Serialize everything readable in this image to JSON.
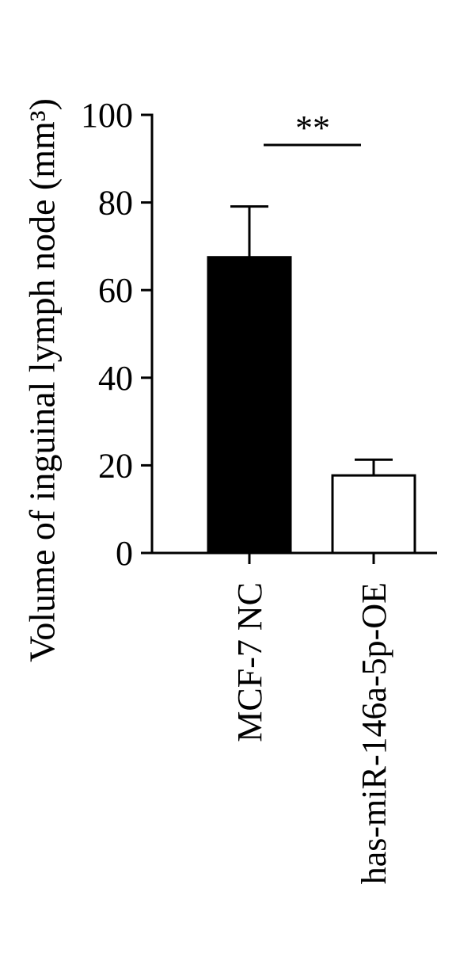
{
  "chart_data": {
    "type": "bar",
    "ylabel": "Volume of inguinal lymph node (mm³)",
    "categories": [
      "MCF-7 NC",
      "has-miR-146a-5p-OE"
    ],
    "values": [
      67.5,
      17.7
    ],
    "errors": [
      11.6,
      3.6
    ],
    "colors": [
      "#000000",
      "#ffffff"
    ],
    "ylim": [
      0,
      100
    ],
    "yticks": [
      0,
      20,
      40,
      60,
      80,
      100
    ],
    "annotation": "**"
  }
}
